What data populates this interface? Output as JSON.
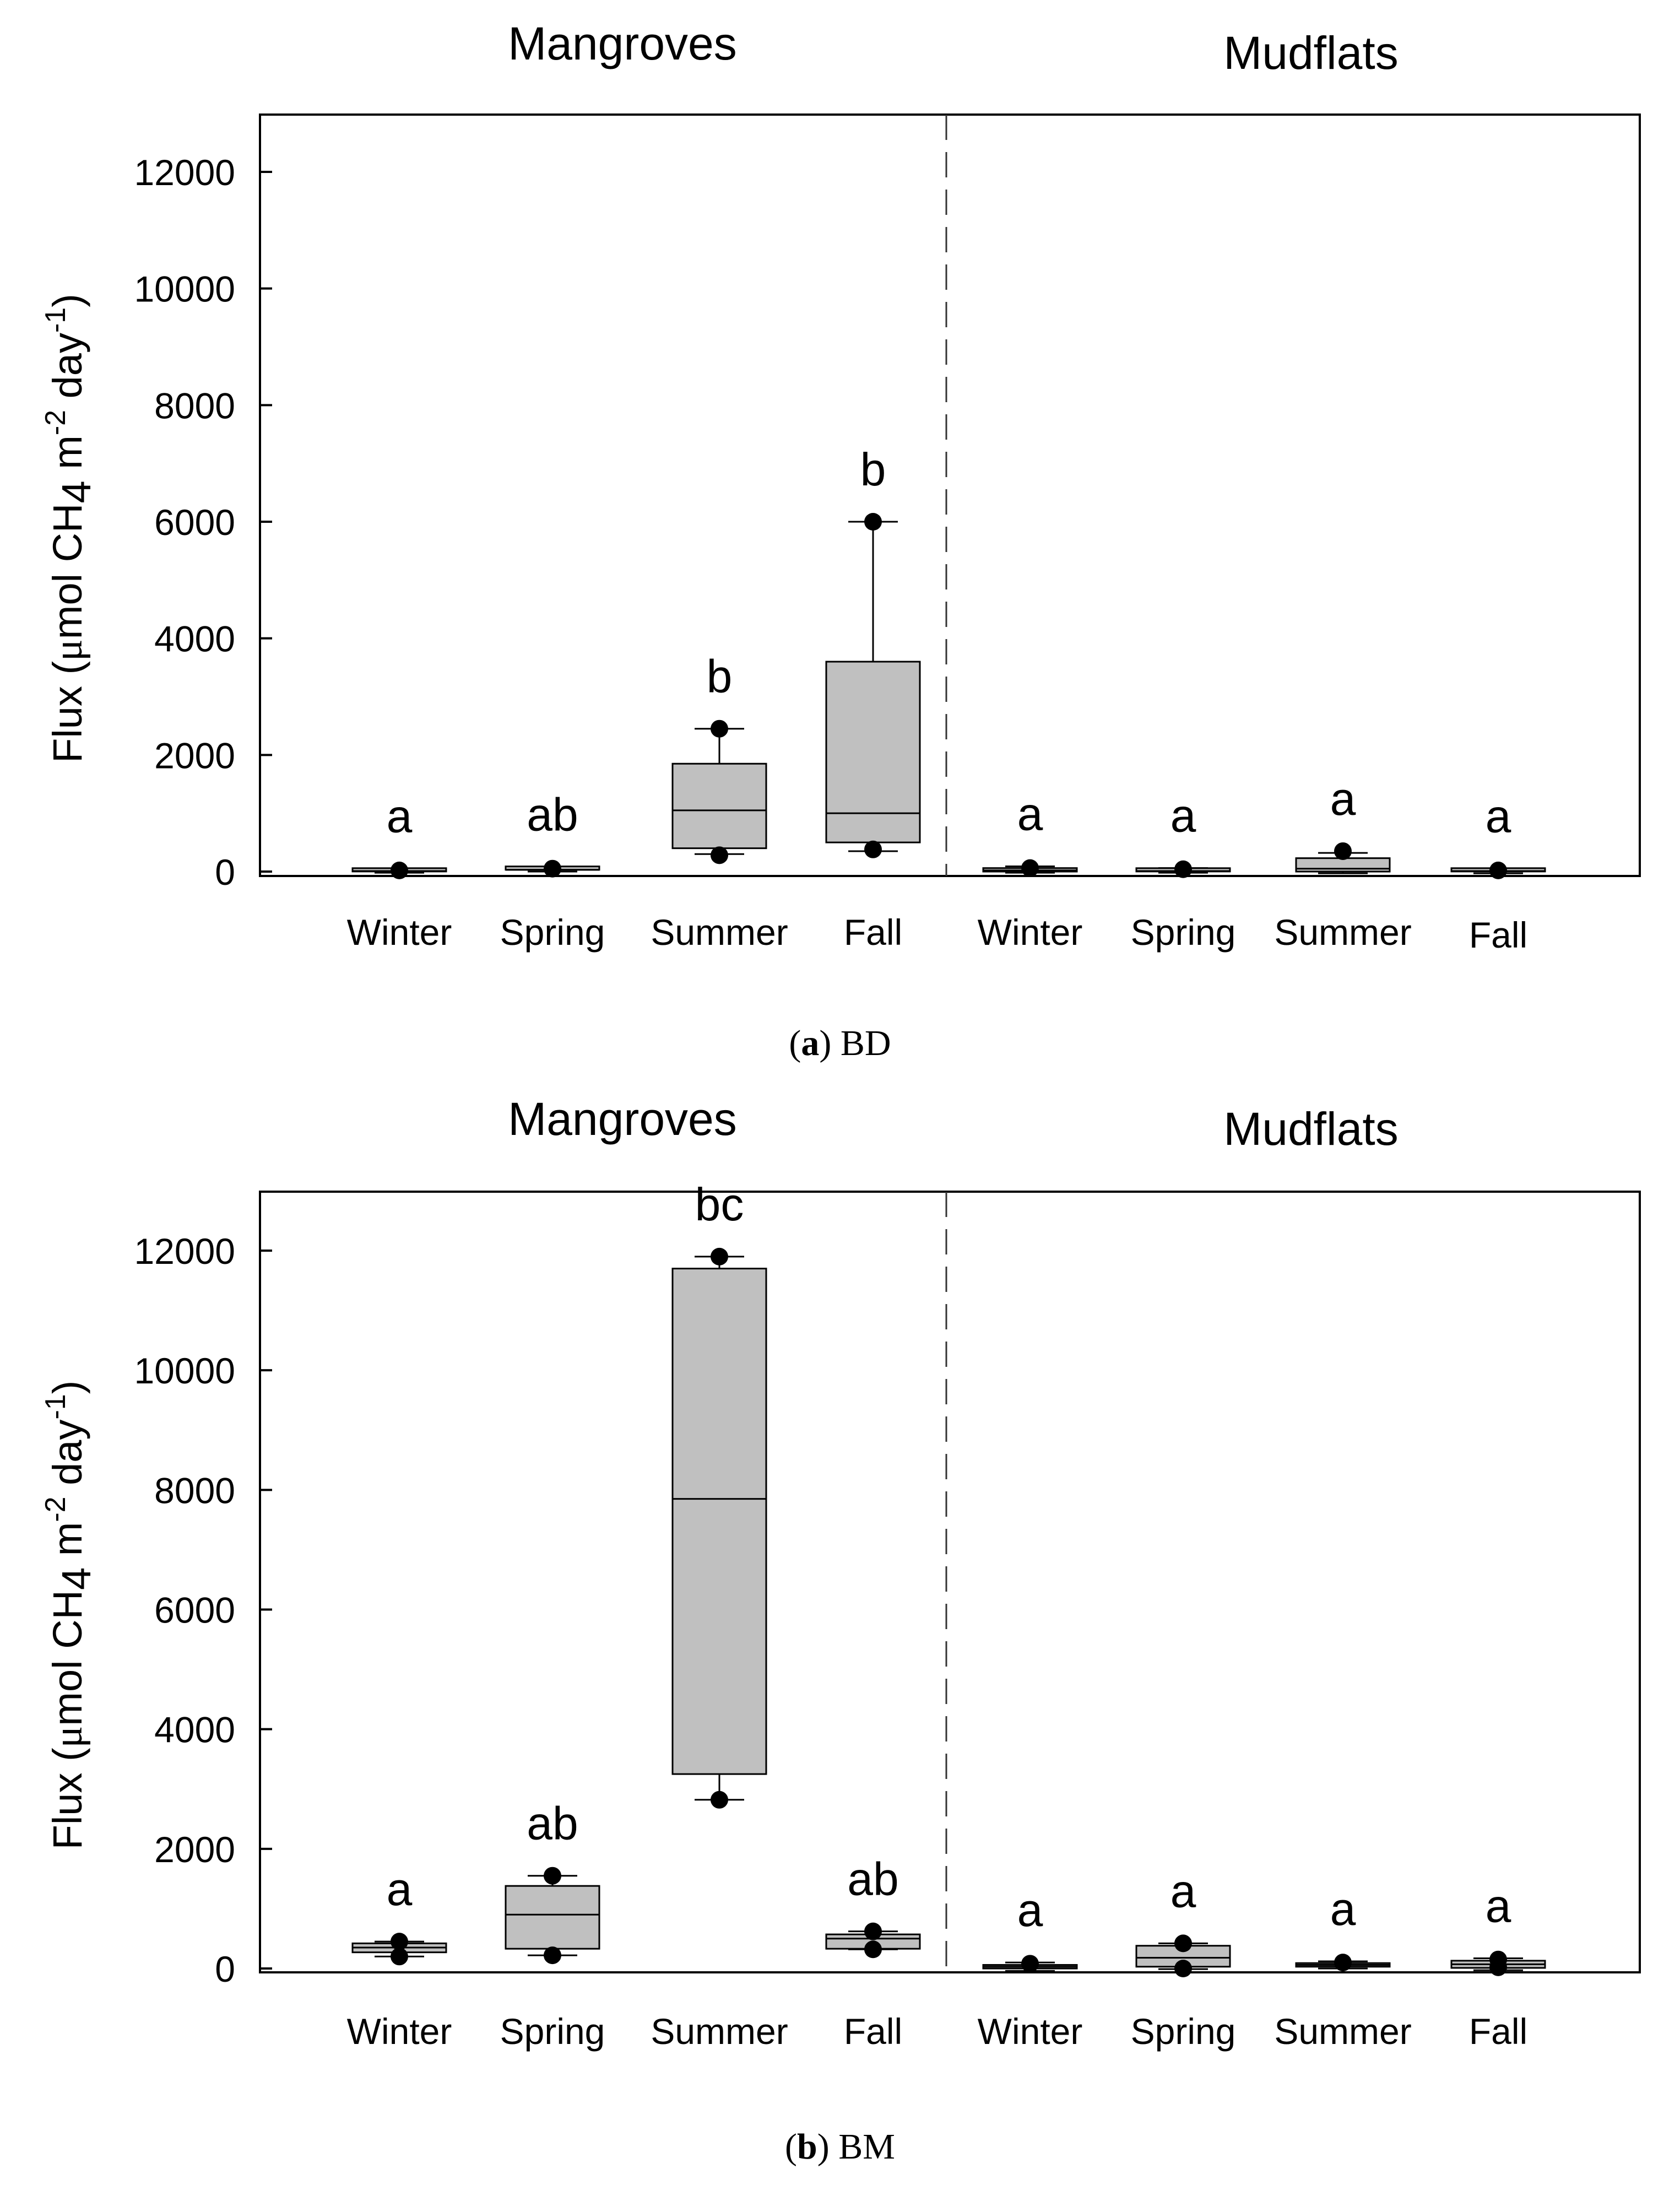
{
  "chart_data": [
    {
      "type": "box",
      "panel_label": "a",
      "caption": "BD",
      "ylabel_parts": {
        "prefix": "Flux (",
        "mu": "μ",
        "mid1": "mol CH",
        "sub": "4",
        "mid2": " m",
        "sup1": "-2",
        "mid3": " day",
        "sup2": "-1",
        "suffix": ")"
      },
      "ylim": [
        -200,
        13000
      ],
      "yticks": [
        0,
        2000,
        4000,
        6000,
        8000,
        10000,
        12000
      ],
      "groups": [
        {
          "name": "Mangroves",
          "categories": [
            "Winter",
            "Spring",
            "Summer",
            "Fall"
          ]
        },
        {
          "name": "Mudflats",
          "categories": [
            "Winter",
            "Spring",
            "Summer",
            "Fall"
          ]
        }
      ],
      "series": [
        {
          "group": "Mangroves",
          "category": "Winter",
          "q1": 0,
          "median": 10,
          "q3": 30,
          "whisker_low": -20,
          "whisker_high": 50,
          "outliers": [
            20
          ],
          "letter": "a"
        },
        {
          "group": "Mangroves",
          "category": "Spring",
          "q1": 10,
          "median": 30,
          "q3": 60,
          "whisker_low": 0,
          "whisker_high": 80,
          "outliers": [
            50
          ],
          "letter": "ab"
        },
        {
          "group": "Mangroves",
          "category": "Summer",
          "q1": 400,
          "median": 1050,
          "q3": 1850,
          "whisker_low": 300,
          "whisker_high": 2450,
          "outliers": [
            280,
            2450
          ],
          "letter": "b"
        },
        {
          "group": "Mangroves",
          "category": "Fall",
          "q1": 500,
          "median": 1000,
          "q3": 3600,
          "whisker_low": 350,
          "whisker_high": 6000,
          "outliers": [
            380,
            6000
          ],
          "letter": "b"
        },
        {
          "group": "Mudflats",
          "category": "Winter",
          "q1": 0,
          "median": 20,
          "q3": 60,
          "whisker_low": -20,
          "whisker_high": 90,
          "outliers": [
            60
          ],
          "letter": "a"
        },
        {
          "group": "Mudflats",
          "category": "Spring",
          "q1": 0,
          "median": 10,
          "q3": 30,
          "whisker_low": -20,
          "whisker_high": 60,
          "outliers": [
            40
          ],
          "letter": "a"
        },
        {
          "group": "Mudflats",
          "category": "Summer",
          "q1": 0,
          "median": 50,
          "q3": 230,
          "whisker_low": -30,
          "whisker_high": 320,
          "outliers": [
            350
          ],
          "letter": "a"
        },
        {
          "group": "Mudflats",
          "category": "Fall",
          "q1": -10,
          "median": 10,
          "q3": 30,
          "whisker_low": -30,
          "whisker_high": 50,
          "outliers": [
            20
          ],
          "letter": "a"
        }
      ]
    },
    {
      "type": "box",
      "panel_label": "b",
      "caption": "BM",
      "ylabel_parts": {
        "prefix": "Flux (",
        "mu": "μ",
        "mid1": "mol CH",
        "sub": "4",
        "mid2": " m",
        "sup1": "-2",
        "mid3": " day",
        "sup2": "-1",
        "suffix": ")"
      },
      "ylim": [
        -200,
        13000
      ],
      "yticks": [
        0,
        2000,
        4000,
        6000,
        8000,
        10000,
        12000
      ],
      "groups": [
        {
          "name": "Mangroves",
          "categories": [
            "Winter",
            "Spring",
            "Summer",
            "Fall"
          ]
        },
        {
          "name": "Mudflats",
          "categories": [
            "Winter",
            "Spring",
            "Summer",
            "Fall"
          ]
        }
      ],
      "series": [
        {
          "group": "Mangroves",
          "category": "Winter",
          "q1": 270,
          "median": 350,
          "q3": 420,
          "whisker_low": 200,
          "whisker_high": 450,
          "outliers": [
            200,
            450
          ],
          "letter": "a"
        },
        {
          "group": "Mangroves",
          "category": "Spring",
          "q1": 330,
          "median": 900,
          "q3": 1380,
          "whisker_low": 220,
          "whisker_high": 1550,
          "outliers": [
            220,
            1550
          ],
          "letter": "ab"
        },
        {
          "group": "Mangroves",
          "category": "Summer",
          "q1": 3250,
          "median": 7850,
          "q3": 11700,
          "whisker_low": 2820,
          "whisker_high": 11900,
          "outliers": [
            2820,
            11900
          ],
          "letter": "bc"
        },
        {
          "group": "Mangroves",
          "category": "Fall",
          "q1": 330,
          "median": 500,
          "q3": 570,
          "whisker_low": 320,
          "whisker_high": 620,
          "outliers": [
            320,
            620
          ],
          "letter": "ab"
        },
        {
          "group": "Mudflats",
          "category": "Winter",
          "q1": 0,
          "median": 30,
          "q3": 60,
          "whisker_low": -40,
          "whisker_high": 100,
          "outliers": [
            80
          ],
          "letter": "a"
        },
        {
          "group": "Mudflats",
          "category": "Spring",
          "q1": 30,
          "median": 180,
          "q3": 380,
          "whisker_low": -10,
          "whisker_high": 420,
          "outliers": [
            0,
            420
          ],
          "letter": "a"
        },
        {
          "group": "Mudflats",
          "category": "Summer",
          "q1": 30,
          "median": 60,
          "q3": 90,
          "whisker_low": 0,
          "whisker_high": 120,
          "outliers": [
            100
          ],
          "letter": "a"
        },
        {
          "group": "Mudflats",
          "category": "Fall",
          "q1": 10,
          "median": 70,
          "q3": 130,
          "whisker_low": -30,
          "whisker_high": 170,
          "outliers": [
            20,
            150
          ],
          "letter": "a"
        }
      ]
    }
  ]
}
